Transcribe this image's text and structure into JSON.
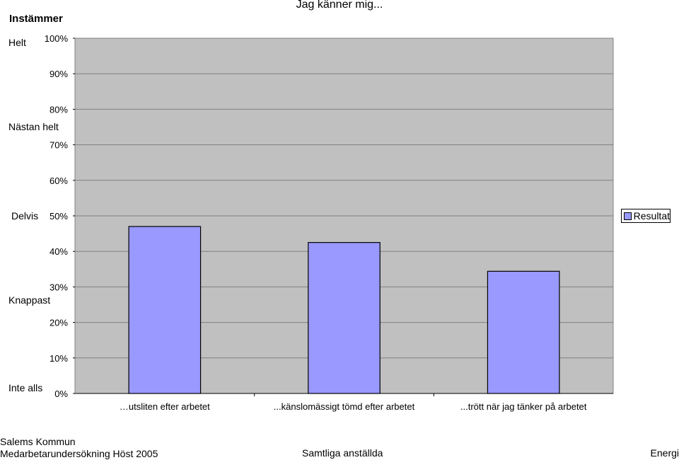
{
  "chart_data": {
    "type": "bar",
    "title": "Jag känner mig...",
    "categories": [
      "…utsliten efter arbetet",
      "...känslomässigt tömd efter arbetet",
      "...trött när jag tänker på arbetet"
    ],
    "series": [
      {
        "name": "Resultat",
        "values": [
          47,
          42.5,
          34.4
        ]
      }
    ],
    "ylim": [
      0,
      100
    ],
    "yticks": [
      "0%",
      "10%",
      "20%",
      "30%",
      "40%",
      "50%",
      "60%",
      "70%",
      "80%",
      "90%",
      "100%"
    ],
    "grid": true,
    "legend_position": "right",
    "colors": {
      "bar": "#9999ff",
      "plot_bg": "#c0c0c0",
      "grid": "#808080"
    }
  },
  "scale": {
    "heading": "Instämmer",
    "labels": [
      "Helt",
      "Nästan helt",
      "Delvis",
      "Knappast",
      "Inte alls"
    ]
  },
  "legend": {
    "label": "Resultat"
  },
  "footer": {
    "org": "Salems Kommun",
    "survey": "Medarbetarundersökning Höst 2005",
    "group": "Samtliga anställda",
    "topic": "Energi"
  }
}
